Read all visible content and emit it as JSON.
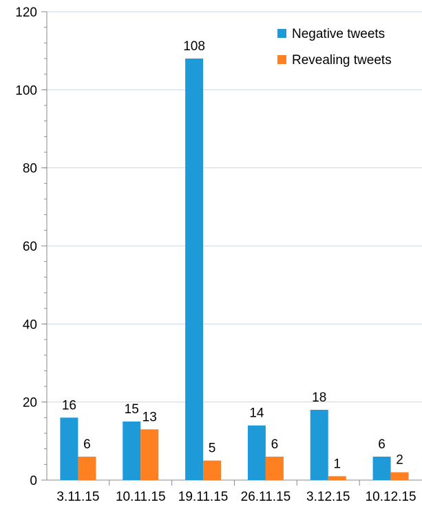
{
  "chart_data": {
    "type": "bar",
    "categories": [
      "3.11.15",
      "10.11.15",
      "19.11.15",
      "26.11.15",
      "3.12.15",
      "10.12.15"
    ],
    "series": [
      {
        "name": "Negative tweets",
        "color": "#1f9ad8",
        "values": [
          16,
          15,
          108,
          14,
          18,
          6
        ]
      },
      {
        "name": "Revealing tweets",
        "color": "#ff8020",
        "values": [
          6,
          13,
          5,
          6,
          1,
          2
        ]
      }
    ],
    "ylim": [
      0,
      120
    ],
    "yticks": [
      0,
      20,
      40,
      60,
      80,
      100,
      120
    ],
    "ytick_labels": [
      "0",
      "20",
      "40",
      "60",
      "80",
      "100",
      "120"
    ],
    "grid": true,
    "legend_position": "top-right",
    "data_labels": true,
    "title": "",
    "xlabel": "",
    "ylabel": ""
  }
}
